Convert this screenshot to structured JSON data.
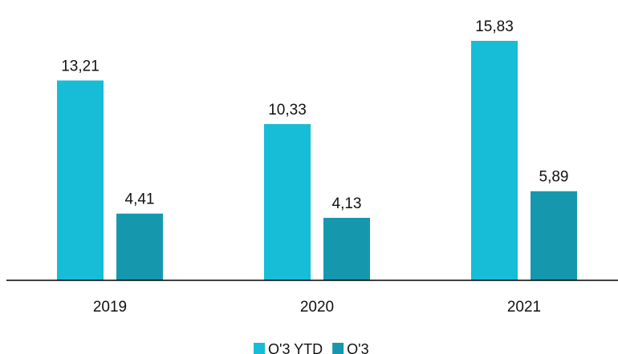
{
  "chart_data": {
    "type": "bar",
    "categories": [
      "2019",
      "2020",
      "2021"
    ],
    "series": [
      {
        "name": "Q'3 YTD",
        "values": [
          13.21,
          10.33,
          15.83
        ],
        "labels": [
          "13,21",
          "10,33",
          "15,83"
        ],
        "color": "#17BCD6"
      },
      {
        "name": "Q'3",
        "values": [
          4.41,
          4.13,
          5.89
        ],
        "labels": [
          "4,41",
          "4,13",
          "5,89"
        ],
        "color": "#1598AE"
      }
    ],
    "ylim": [
      0,
      15.83
    ],
    "grid": false,
    "axis_color": "#000000",
    "legend": "bottom-center"
  }
}
